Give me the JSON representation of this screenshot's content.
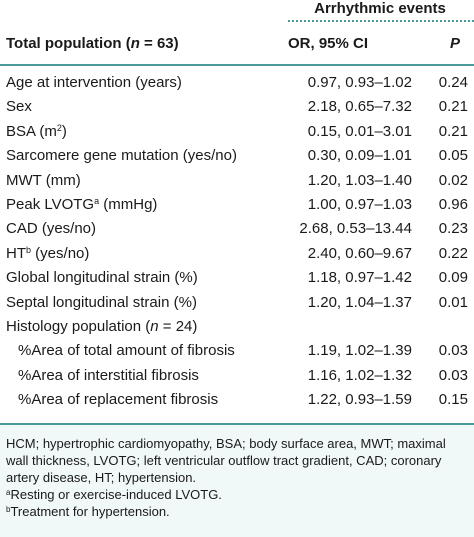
{
  "header": {
    "group": "Arrhythmic events",
    "col1_prefix": "Total population (",
    "col1_n": "n",
    "col1_suffix": " = 63)",
    "col2": "OR, 95% CI",
    "col3": "P"
  },
  "rows": [
    {
      "label": "Age at intervention (years)",
      "or": "0.97, 0.93–1.02",
      "p": "0.24"
    },
    {
      "label": "Sex",
      "or": "2.18, 0.65–7.32",
      "p": "0.21"
    },
    {
      "label": "BSA (m",
      "sup": "2",
      "label_after": ")",
      "or": "0.15, 0.01–3.01",
      "p": "0.21"
    },
    {
      "label": "Sarcomere gene mutation (yes/no)",
      "or": "0.30, 0.09–1.01",
      "p": "0.05"
    },
    {
      "label": "MWT (mm)",
      "or": "1.20, 1.03–1.40",
      "p": "0.02"
    },
    {
      "label": "Peak LVOTG",
      "sup": "a",
      "label_after": " (mmHg)",
      "or": "1.00, 0.97–1.03",
      "p": "0.96"
    },
    {
      "label": "CAD (yes/no)",
      "or": "2.68, 0.53–13.44",
      "p": "0.23"
    },
    {
      "label": "HT",
      "sup": "b",
      "label_after": " (yes/no)",
      "or": "2.40, 0.60–9.67",
      "p": "0.22"
    },
    {
      "label": "Global longitudinal strain (%)",
      "or": "1.18, 0.97–1.42",
      "p": "0.09"
    },
    {
      "label": "Septal longitudinal strain (%)",
      "or": "1.20, 1.04–1.37",
      "p": "0.01"
    },
    {
      "label": "Histology population (",
      "label_italic": "n",
      "label_after": " = 24)",
      "or": "",
      "p": ""
    },
    {
      "label": "%Area of total amount of fibrosis",
      "or": "1.19, 1.02–1.39",
      "p": "0.03",
      "sub": true
    },
    {
      "label": "%Area of interstitial fibrosis",
      "or": "1.16, 1.02–1.32",
      "p": "0.03",
      "sub": true
    },
    {
      "label": "%Area of replacement fibrosis",
      "or": "1.22, 0.93–1.59",
      "p": "0.15",
      "sub": true
    }
  ],
  "footnotes": {
    "abbrev": "HCM; hypertrophic cardiomyopathy, BSA; body surface area, MWT; maximal wall thickness, LVOTG; left ventricular outflow tract gradient, CAD; coronary artery disease, HT; hypertension.",
    "a_mark": "a",
    "a_text": "Resting or exercise-induced LVOTG.",
    "b_mark": "b",
    "b_text": "Treatment for hypertension."
  }
}
